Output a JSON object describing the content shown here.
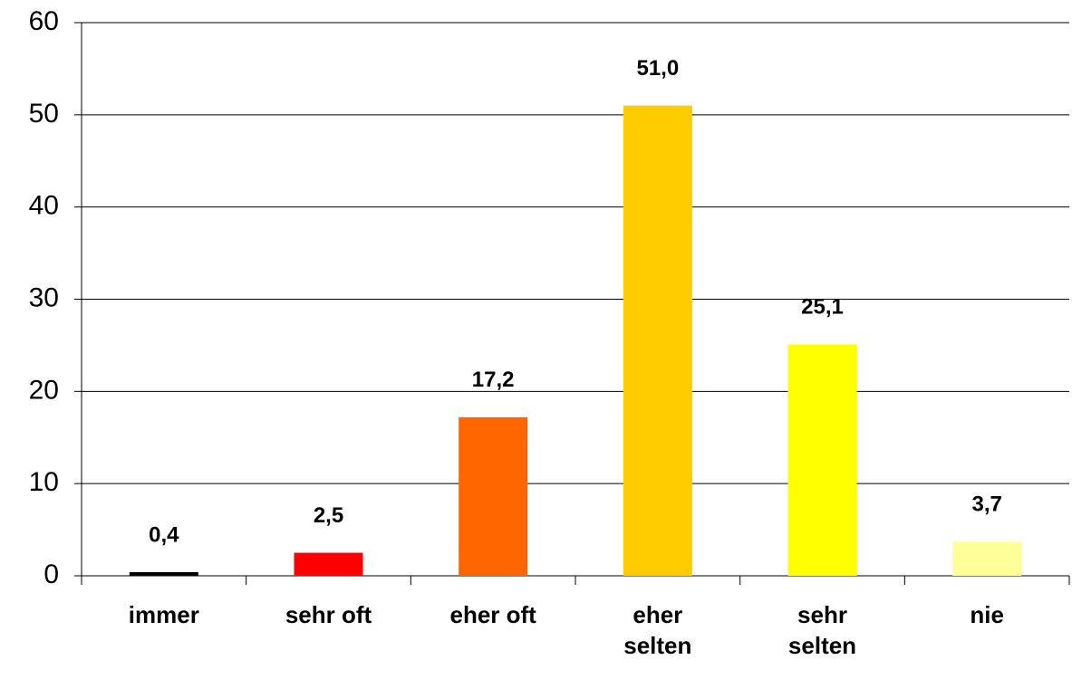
{
  "chart_data": {
    "type": "bar",
    "categories": [
      "immer",
      "sehr oft",
      "eher oft",
      "eher selten",
      "sehr selten",
      "nie"
    ],
    "values": [
      0.4,
      2.5,
      17.2,
      51.0,
      25.1,
      3.7
    ],
    "value_labels": [
      "0,4",
      "2,5",
      "17,2",
      "51,0",
      "25,1",
      "3,7"
    ],
    "colors": [
      "#000000",
      "#ff0000",
      "#ff6600",
      "#ffcc00",
      "#ffff00",
      "#ffff99"
    ],
    "ylim": [
      0,
      60
    ],
    "yticks": [
      0,
      10,
      20,
      30,
      40,
      50,
      60
    ],
    "grid": true
  }
}
